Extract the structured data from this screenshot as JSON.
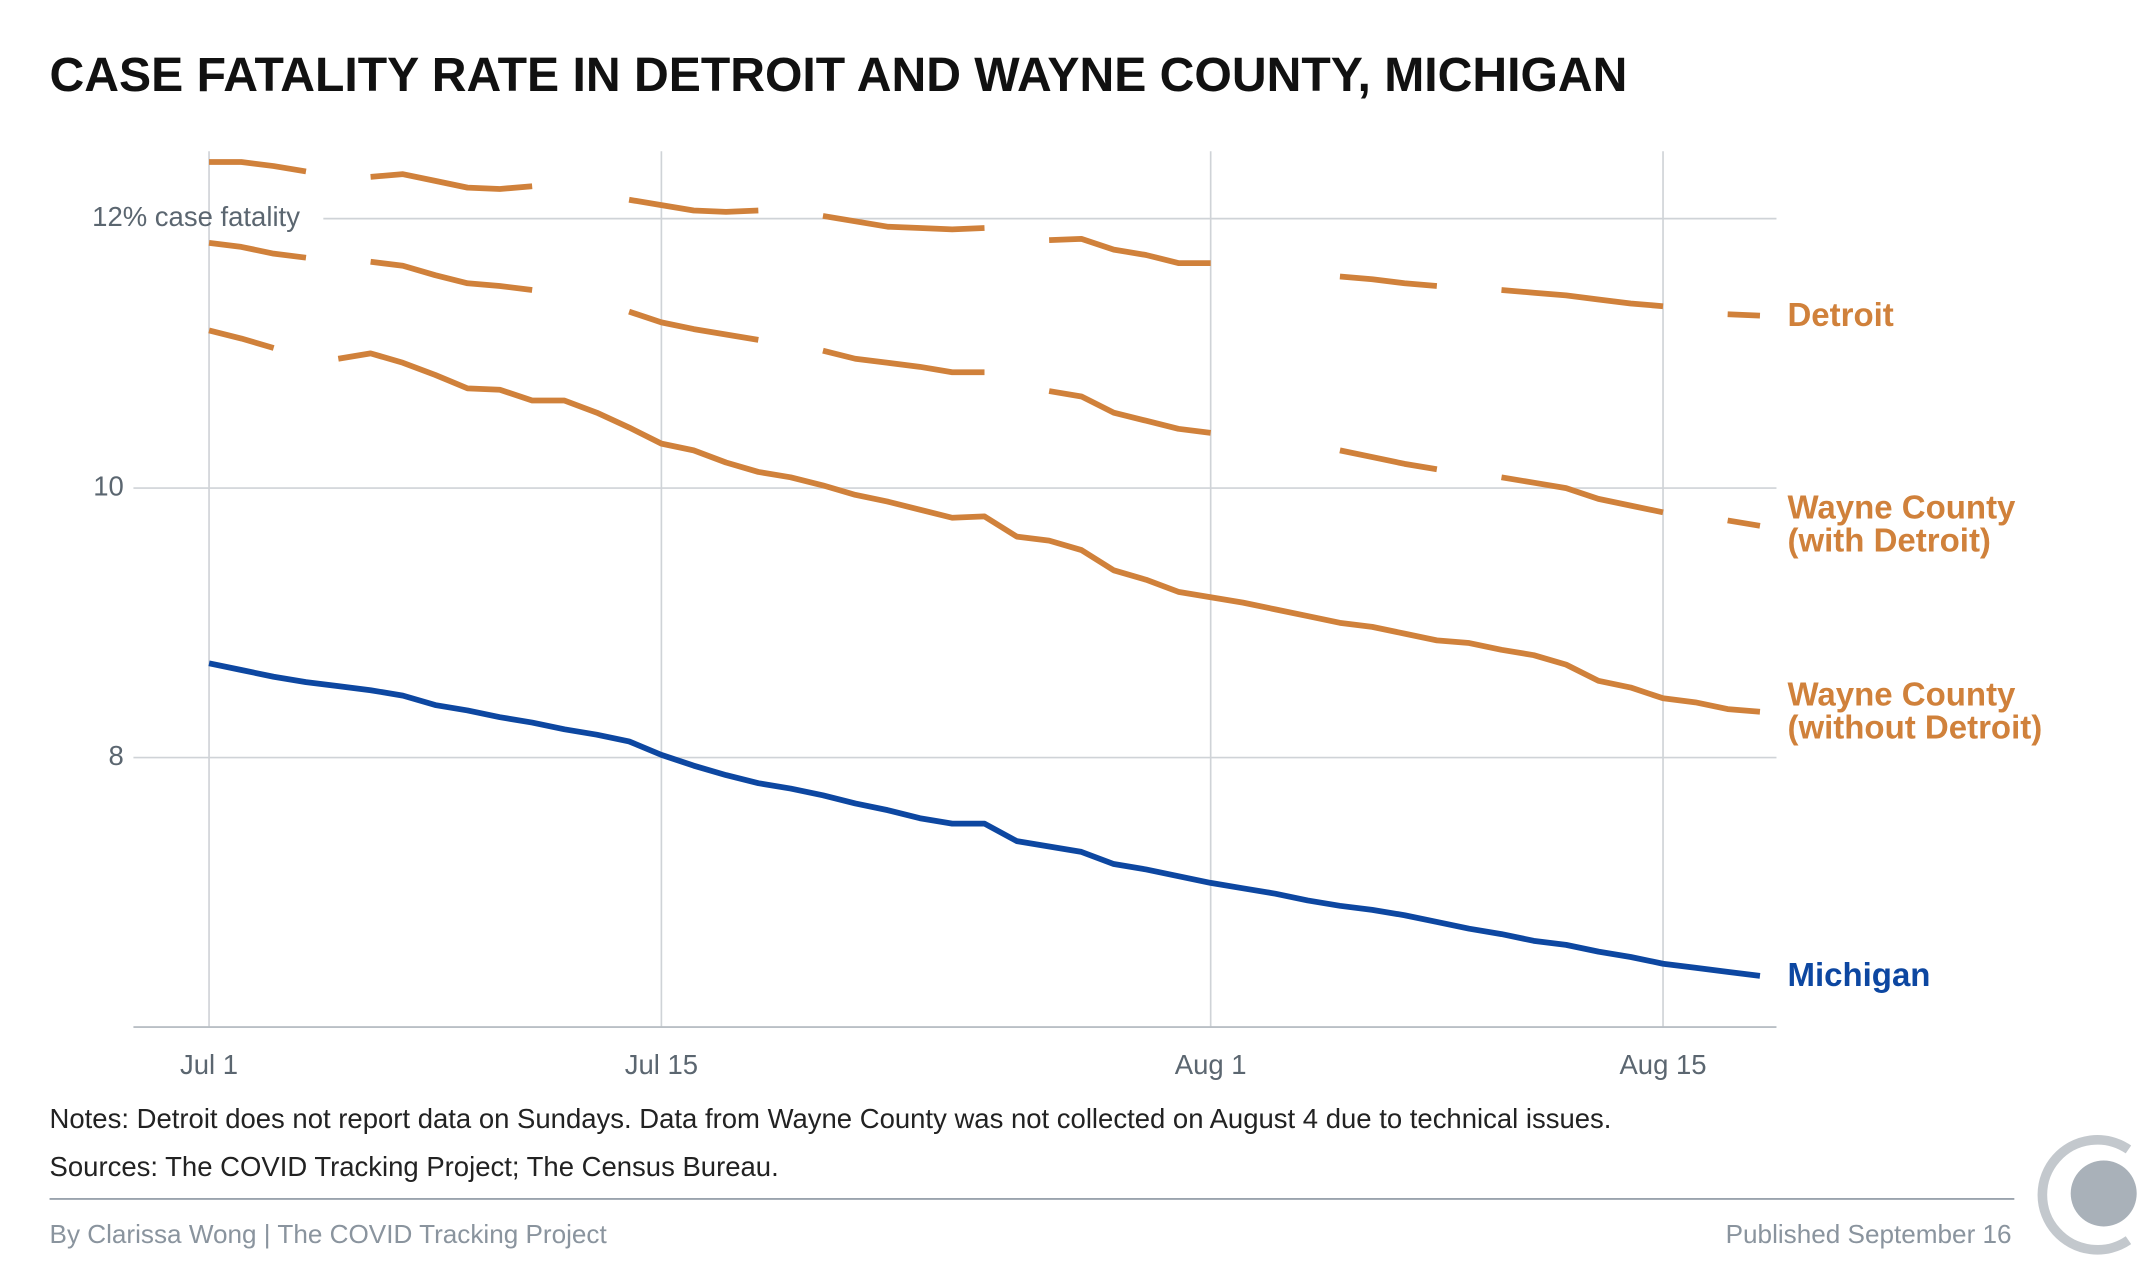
{
  "chart_data": {
    "type": "line",
    "title": "CASE FATALITY RATE IN DETROIT AND WAYNE COUNTY, MICHIGAN",
    "notes": "Notes: Detroit does not report data on Sundays. Data from Wayne County was not collected on August 4 due to technical issues.",
    "sources": "Sources: The COVID Tracking Project; The Census Bureau.",
    "byline": "By Clarissa Wong | The COVID Tracking Project",
    "published": "Published September 16",
    "x": [
      "Jul 1",
      "Jul 2",
      "Jul 3",
      "Jul 4",
      "Jul 5",
      "Jul 6",
      "Jul 7",
      "Jul 8",
      "Jul 9",
      "Jul 10",
      "Jul 11",
      "Jul 12",
      "Jul 13",
      "Jul 14",
      "Jul 15",
      "Jul 16",
      "Jul 17",
      "Jul 18",
      "Jul 19",
      "Jul 20",
      "Jul 21",
      "Jul 22",
      "Jul 23",
      "Jul 24",
      "Jul 25",
      "Jul 26",
      "Jul 27",
      "Jul 28",
      "Jul 29",
      "Jul 30",
      "Jul 31",
      "Aug 1",
      "Aug 2",
      "Aug 3",
      "Aug 4",
      "Aug 5",
      "Aug 6",
      "Aug 7",
      "Aug 8",
      "Aug 9",
      "Aug 10",
      "Aug 11",
      "Aug 12",
      "Aug 13",
      "Aug 14",
      "Aug 15",
      "Aug 16",
      "Aug 17",
      "Aug 18"
    ],
    "xticks": [
      "Jul 1",
      "Jul 15",
      "Aug 1",
      "Aug 15"
    ],
    "ylim": [
      6,
      12.5
    ],
    "yticks": [
      8,
      10,
      {
        "value": 12,
        "label": "12% case fatality"
      }
    ],
    "grid": true,
    "series": [
      {
        "name": "Detroit",
        "color": "#d0813b",
        "values": [
          12.42,
          12.42,
          12.39,
          12.35,
          null,
          12.31,
          12.33,
          12.28,
          12.23,
          12.22,
          12.24,
          null,
          null,
          12.14,
          12.1,
          12.06,
          12.05,
          12.06,
          null,
          12.02,
          11.98,
          11.94,
          11.93,
          11.92,
          11.93,
          null,
          11.84,
          11.85,
          11.77,
          11.73,
          11.67,
          11.67,
          null,
          null,
          null,
          11.57,
          11.55,
          11.52,
          11.5,
          null,
          11.47,
          11.45,
          11.43,
          11.4,
          11.37,
          11.35,
          null,
          11.29,
          11.28
        ]
      },
      {
        "name": "Wayne County (with Detroit)",
        "color": "#d0813b",
        "values": [
          11.82,
          11.79,
          11.74,
          11.71,
          null,
          11.68,
          11.65,
          11.58,
          11.52,
          11.5,
          11.47,
          null,
          null,
          11.31,
          11.23,
          11.18,
          11.14,
          11.1,
          null,
          11.02,
          10.96,
          10.93,
          10.9,
          10.86,
          10.86,
          null,
          10.72,
          10.68,
          10.56,
          10.5,
          10.44,
          10.41,
          null,
          null,
          null,
          10.28,
          10.23,
          10.18,
          10.14,
          null,
          10.08,
          10.04,
          10.0,
          9.92,
          9.87,
          9.82,
          null,
          9.76,
          9.72
        ]
      },
      {
        "name": "Wayne County (without Detroit)",
        "color": "#d0813b",
        "values": [
          11.17,
          11.11,
          11.04,
          null,
          10.96,
          11.0,
          10.93,
          10.84,
          10.74,
          10.73,
          10.65,
          10.65,
          10.56,
          10.45,
          10.33,
          10.28,
          10.19,
          10.12,
          10.08,
          10.02,
          9.95,
          9.9,
          9.84,
          9.78,
          9.79,
          9.64,
          9.61,
          9.54,
          9.39,
          9.32,
          9.23,
          9.19,
          9.15,
          9.1,
          9.05,
          9.0,
          8.97,
          8.92,
          8.87,
          8.85,
          8.8,
          8.76,
          8.69,
          8.57,
          8.52,
          8.44,
          8.41,
          8.36,
          8.34
        ]
      },
      {
        "name": "Michigan",
        "color": "#0d47a1",
        "values": [
          8.7,
          8.65,
          8.6,
          8.56,
          8.53,
          8.5,
          8.46,
          8.39,
          8.35,
          8.3,
          8.26,
          8.21,
          8.17,
          8.12,
          8.02,
          7.94,
          7.87,
          7.81,
          7.77,
          7.72,
          7.66,
          7.61,
          7.55,
          7.51,
          7.51,
          7.38,
          7.34,
          7.3,
          7.21,
          7.17,
          7.12,
          7.07,
          7.03,
          6.99,
          6.94,
          6.9,
          6.87,
          6.83,
          6.78,
          6.73,
          6.69,
          6.64,
          6.61,
          6.56,
          6.52,
          6.47,
          6.44,
          6.41,
          6.38
        ]
      }
    ]
  }
}
